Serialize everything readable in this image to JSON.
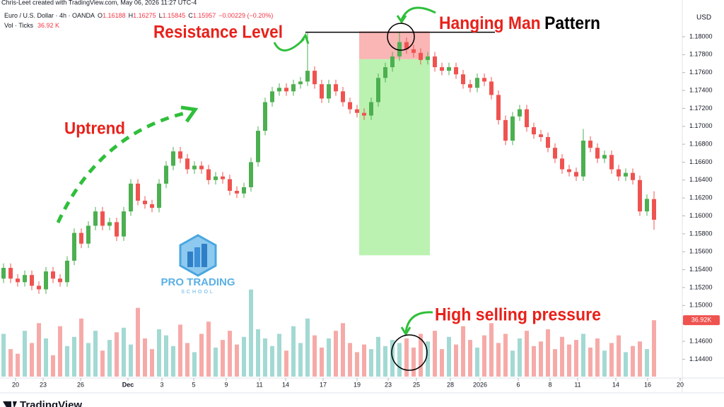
{
  "header": {
    "credit": "Chris-Leet created with TradingView.com, May 06, 2026 11:27 UTC-4"
  },
  "legend": {
    "symbol": "Euro / U.S. Dollar · 4h · OANDA",
    "keys": [
      "O",
      "H",
      "L",
      "C"
    ],
    "values": [
      "1.16188",
      "1.16275",
      "1.15845",
      "1.15957"
    ],
    "change": "−0.00229 (−0.20%)",
    "vol_label": "Vol · Ticks",
    "vol_value": "36.92 K"
  },
  "logo": {
    "line1": "PRO TRADING",
    "line2": "SCHOOL"
  },
  "footer": {
    "brand": "TradingView"
  },
  "chart_data": {
    "type": "candlestick",
    "currency": "USD",
    "annotations": {
      "resistance": "Resistance Level",
      "hanging": "Hanging Man",
      "pattern": "Pattern",
      "uptrend": "Uptrend",
      "pressure": "High selling pressure"
    },
    "ylim": [
      1.1419,
      1.1841
    ],
    "yticks": [
      {
        "value": 1.18,
        "label": "1.18000"
      },
      {
        "value": 1.178,
        "label": "1.17800"
      },
      {
        "value": 1.176,
        "label": "1.17600"
      },
      {
        "value": 1.174,
        "label": "1.17400"
      },
      {
        "value": 1.172,
        "label": "1.17200"
      },
      {
        "value": 1.17,
        "label": "1.17000"
      },
      {
        "value": 1.168,
        "label": "1.16800"
      },
      {
        "value": 1.166,
        "label": "1.16600"
      },
      {
        "value": 1.164,
        "label": "1.16400"
      },
      {
        "value": 1.162,
        "label": "1.16200"
      },
      {
        "value": 1.16,
        "label": "1.16000"
      },
      {
        "value": 1.158,
        "label": "1.15800"
      },
      {
        "value": 1.156,
        "label": "1.15600"
      },
      {
        "value": 1.154,
        "label": "1.15400"
      },
      {
        "value": 1.152,
        "label": "1.15200"
      },
      {
        "value": 1.15,
        "label": "1.15000"
      },
      {
        "value": 1.148,
        "label": "1.14800"
      },
      {
        "value": 1.146,
        "label": "1.14600"
      },
      {
        "value": 1.144,
        "label": "1.14400"
      }
    ],
    "xlim": [
      -0.5,
      95.5
    ],
    "xticks": [
      {
        "value": 1.7,
        "label": "20"
      },
      {
        "value": 5.6,
        "label": "23"
      },
      {
        "value": 10.9,
        "label": "26"
      },
      {
        "value": 17.6,
        "label": "Dec"
      },
      {
        "value": 22.4,
        "label": "3"
      },
      {
        "value": 26.9,
        "label": "5"
      },
      {
        "value": 31.5,
        "label": "9"
      },
      {
        "value": 36.2,
        "label": "11"
      },
      {
        "value": 39.9,
        "label": "14"
      },
      {
        "value": 45.2,
        "label": "17"
      },
      {
        "value": 50,
        "label": "19"
      },
      {
        "value": 54.4,
        "label": "23"
      },
      {
        "value": 58.4,
        "label": "25"
      },
      {
        "value": 63.2,
        "label": "28"
      },
      {
        "value": 67.4,
        "label": "2026"
      },
      {
        "value": 72.8,
        "label": "6"
      },
      {
        "value": 77.3,
        "label": "8"
      },
      {
        "value": 81.2,
        "label": "11"
      },
      {
        "value": 86.6,
        "label": "14"
      },
      {
        "value": 91.1,
        "label": "16"
      },
      {
        "value": 95.7,
        "label": "20"
      }
    ],
    "up_color": "#4caf50",
    "down_color": "#ef5350",
    "ohlc": [
      [
        1.153,
        1.1547,
        1.1525,
        1.1542
      ],
      [
        1.1542,
        1.1547,
        1.1525,
        1.153
      ],
      [
        1.153,
        1.1535,
        1.1521,
        1.1526
      ],
      [
        1.1526,
        1.1539,
        1.1521,
        1.1534
      ],
      [
        1.1534,
        1.1539,
        1.1517,
        1.1522
      ],
      [
        1.1522,
        1.1527,
        1.1513,
        1.1518
      ],
      [
        1.1518,
        1.1543,
        1.1513,
        1.1538
      ],
      [
        1.1538,
        1.1543,
        1.1525,
        1.153
      ],
      [
        1.153,
        1.1535,
        1.1521,
        1.1526
      ],
      [
        1.1526,
        1.1555,
        1.1521,
        1.155
      ],
      [
        1.155,
        1.1586,
        1.1545,
        1.1581
      ],
      [
        1.1581,
        1.1586,
        1.1564,
        1.1569
      ],
      [
        1.1569,
        1.1594,
        1.1564,
        1.1589
      ],
      [
        1.1589,
        1.161,
        1.1584,
        1.1605
      ],
      [
        1.1605,
        1.161,
        1.1584,
        1.1589
      ],
      [
        1.1589,
        1.1598,
        1.1584,
        1.1593
      ],
      [
        1.1593,
        1.1598,
        1.1572,
        1.1577
      ],
      [
        1.1577,
        1.161,
        1.1572,
        1.1605
      ],
      [
        1.1605,
        1.1641,
        1.16,
        1.1636
      ],
      [
        1.1636,
        1.1641,
        1.1612,
        1.1617
      ],
      [
        1.1617,
        1.1622,
        1.1608,
        1.1613
      ],
      [
        1.1613,
        1.1618,
        1.1604,
        1.1609
      ],
      [
        1.1609,
        1.1641,
        1.1604,
        1.1636
      ],
      [
        1.1636,
        1.1661,
        1.1631,
        1.1656
      ],
      [
        1.1656,
        1.1677,
        1.1651,
        1.1672
      ],
      [
        1.1672,
        1.1677,
        1.1659,
        1.1664
      ],
      [
        1.1664,
        1.1669,
        1.1647,
        1.1652
      ],
      [
        1.1652,
        1.1661,
        1.1647,
        1.1656
      ],
      [
        1.1656,
        1.1661,
        1.1647,
        1.1652
      ],
      [
        1.1652,
        1.1657,
        1.1635,
        1.164
      ],
      [
        1.164,
        1.1649,
        1.1635,
        1.1644
      ],
      [
        1.1644,
        1.1649,
        1.1636,
        1.1641
      ],
      [
        1.1641,
        1.1646,
        1.1623,
        1.1628
      ],
      [
        1.1628,
        1.1633,
        1.162,
        1.1625
      ],
      [
        1.1625,
        1.1637,
        1.162,
        1.1632
      ],
      [
        1.1632,
        1.1665,
        1.1627,
        1.166
      ],
      [
        1.166,
        1.17,
        1.1655,
        1.1695
      ],
      [
        1.1695,
        1.1732,
        1.169,
        1.1727
      ],
      [
        1.1727,
        1.1744,
        1.1722,
        1.1739
      ],
      [
        1.1739,
        1.1748,
        1.1734,
        1.1743
      ],
      [
        1.1743,
        1.1748,
        1.1734,
        1.1739
      ],
      [
        1.1739,
        1.1752,
        1.1734,
        1.1747
      ],
      [
        1.1747,
        1.1755,
        1.1742,
        1.175
      ],
      [
        1.175,
        1.1804,
        1.1745,
        1.1762
      ],
      [
        1.1762,
        1.1767,
        1.1742,
        1.1747
      ],
      [
        1.1747,
        1.1752,
        1.1726,
        1.1731
      ],
      [
        1.1731,
        1.1752,
        1.1726,
        1.1747
      ],
      [
        1.1747,
        1.1752,
        1.1734,
        1.1739
      ],
      [
        1.1739,
        1.1744,
        1.1722,
        1.1727
      ],
      [
        1.1727,
        1.1732,
        1.1714,
        1.1719
      ],
      [
        1.1719,
        1.1724,
        1.171,
        1.1715
      ],
      [
        1.1715,
        1.172,
        1.1707,
        1.1712
      ],
      [
        1.1712,
        1.1732,
        1.1707,
        1.1727
      ],
      [
        1.1727,
        1.1759,
        1.1722,
        1.1754
      ],
      [
        1.1754,
        1.1771,
        1.1749,
        1.1766
      ],
      [
        1.1766,
        1.1783,
        1.1761,
        1.1778
      ],
      [
        1.1778,
        1.1805,
        1.1773,
        1.1794
      ],
      [
        1.1794,
        1.1799,
        1.1781,
        1.1786
      ],
      [
        1.1786,
        1.1791,
        1.1777,
        1.1782
      ],
      [
        1.1782,
        1.1787,
        1.1769,
        1.1774
      ],
      [
        1.1774,
        1.1783,
        1.1769,
        1.1778
      ],
      [
        1.1778,
        1.1783,
        1.1761,
        1.1766
      ],
      [
        1.1766,
        1.1771,
        1.1757,
        1.1762
      ],
      [
        1.1762,
        1.1771,
        1.1757,
        1.1766
      ],
      [
        1.1766,
        1.1771,
        1.1753,
        1.1758
      ],
      [
        1.1758,
        1.1763,
        1.1742,
        1.1747
      ],
      [
        1.1747,
        1.1752,
        1.1738,
        1.1743
      ],
      [
        1.1743,
        1.1759,
        1.1738,
        1.1754
      ],
      [
        1.1754,
        1.1759,
        1.1745,
        1.175
      ],
      [
        1.175,
        1.1755,
        1.173,
        1.1735
      ],
      [
        1.1735,
        1.174,
        1.1702,
        1.1707
      ],
      [
        1.1707,
        1.1712,
        1.1679,
        1.1684
      ],
      [
        1.1684,
        1.1716,
        1.1679,
        1.1711
      ],
      [
        1.1711,
        1.1724,
        1.1706,
        1.1719
      ],
      [
        1.1719,
        1.1724,
        1.1694,
        1.1699
      ],
      [
        1.1699,
        1.1704,
        1.1686,
        1.1691
      ],
      [
        1.1691,
        1.1696,
        1.1683,
        1.1688
      ],
      [
        1.1688,
        1.1693,
        1.1671,
        1.1676
      ],
      [
        1.1676,
        1.1681,
        1.1659,
        1.1664
      ],
      [
        1.1664,
        1.1669,
        1.1647,
        1.1652
      ],
      [
        1.1652,
        1.1657,
        1.1644,
        1.1649
      ],
      [
        1.1649,
        1.1654,
        1.1639,
        1.1644
      ],
      [
        1.1644,
        1.1697,
        1.1639,
        1.1684
      ],
      [
        1.1684,
        1.1689,
        1.1671,
        1.1676
      ],
      [
        1.1676,
        1.1681,
        1.1659,
        1.1664
      ],
      [
        1.1664,
        1.1673,
        1.1659,
        1.1668
      ],
      [
        1.1668,
        1.1673,
        1.1647,
        1.1652
      ],
      [
        1.1652,
        1.1657,
        1.1639,
        1.1644
      ],
      [
        1.1644,
        1.1653,
        1.1639,
        1.1648
      ],
      [
        1.1648,
        1.1653,
        1.1635,
        1.164
      ],
      [
        1.164,
        1.1645,
        1.16,
        1.1605
      ],
      [
        1.1605,
        1.1624,
        1.16,
        1.1619
      ],
      [
        1.16188,
        1.16275,
        1.15845,
        1.15957
      ]
    ],
    "volume": {
      "vlim": [
        0,
        80000
      ],
      "up_color": "#a3d9d3",
      "down_color": "#f6aaa8",
      "tag_color": "#ef5350",
      "last_value_label": "36.92K",
      "values": [
        28000,
        18000,
        15000,
        30000,
        22000,
        35000,
        25000,
        14000,
        33000,
        20000,
        26000,
        38000,
        22000,
        30000,
        17000,
        24000,
        29000,
        32000,
        21000,
        45000,
        25000,
        18000,
        31000,
        27000,
        20000,
        34000,
        22000,
        16000,
        28000,
        36000,
        19000,
        24000,
        30000,
        21000,
        26000,
        57000,
        31000,
        25000,
        20000,
        28000,
        17000,
        33000,
        22000,
        38000,
        27000,
        19000,
        25000,
        30000,
        35000,
        22000,
        16000,
        21000,
        18000,
        26000,
        20000,
        24000,
        22000,
        25000,
        19000,
        28000,
        23000,
        30000,
        18000,
        26000,
        21000,
        33000,
        24000,
        19000,
        27000,
        35000,
        22000,
        28000,
        17000,
        25000,
        30000,
        20000,
        23000,
        31000,
        18000,
        26000,
        21000,
        24000,
        28000,
        19000,
        25000,
        17000,
        22000,
        27000,
        16000,
        20000,
        23000,
        18000,
        36920
      ]
    },
    "position": {
      "stop": 1.1806,
      "entry": 1.1775,
      "target": 1.1556,
      "from": 50.3,
      "to": 60.3,
      "stop_color": "rgba(246,120,120,0.55)",
      "target_color": "rgba(120,230,100,0.5)"
    },
    "resistance": {
      "price": 1.1805,
      "from": 42.7,
      "to": 69.5,
      "color": "#000000"
    }
  }
}
